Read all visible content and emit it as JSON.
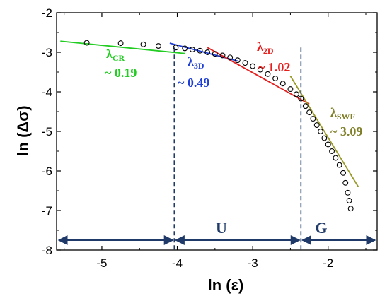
{
  "chart_data": {
    "type": "scatter",
    "xlabel": "ln (ε)",
    "ylabel": "ln (Δσ)",
    "xlim": [
      -5.6,
      -1.35
    ],
    "ylim": [
      -8,
      -2
    ],
    "xticks": [
      "-5",
      "-4",
      "-3",
      "-2"
    ],
    "xtick_values": [
      -5,
      -4,
      -3,
      -2
    ],
    "yticks": [
      "-2",
      "-3",
      "-4",
      "-5",
      "-6",
      "-7",
      "-8"
    ],
    "ytick_values": [
      -2,
      -3,
      -4,
      -5,
      -6,
      -7,
      -8
    ],
    "grid": false,
    "points": [
      [
        -5.2,
        -2.76
      ],
      [
        -4.75,
        -2.77
      ],
      [
        -4.45,
        -2.8
      ],
      [
        -4.25,
        -2.84
      ],
      [
        -4.02,
        -2.88
      ],
      [
        -3.9,
        -2.9
      ],
      [
        -3.8,
        -2.93
      ],
      [
        -3.7,
        -2.96
      ],
      [
        -3.6,
        -3.0
      ],
      [
        -3.5,
        -3.04
      ],
      [
        -3.4,
        -3.08
      ],
      [
        -3.3,
        -3.13
      ],
      [
        -3.2,
        -3.2
      ],
      [
        -3.1,
        -3.27
      ],
      [
        -3.0,
        -3.35
      ],
      [
        -2.9,
        -3.44
      ],
      [
        -2.8,
        -3.55
      ],
      [
        -2.7,
        -3.66
      ],
      [
        -2.6,
        -3.79
      ],
      [
        -2.5,
        -3.93
      ],
      [
        -2.42,
        -4.06
      ],
      [
        -2.36,
        -4.17
      ],
      [
        -2.3,
        -4.36
      ],
      [
        -2.25,
        -4.52
      ],
      [
        -2.2,
        -4.68
      ],
      [
        -2.15,
        -4.84
      ],
      [
        -2.1,
        -5.0
      ],
      [
        -2.05,
        -5.17
      ],
      [
        -2.0,
        -5.33
      ],
      [
        -1.95,
        -5.5
      ],
      [
        -1.9,
        -5.67
      ],
      [
        -1.85,
        -5.85
      ],
      [
        -1.8,
        -6.05
      ],
      [
        -1.77,
        -6.3
      ],
      [
        -1.74,
        -6.55
      ],
      [
        -1.72,
        -6.75
      ],
      [
        -1.7,
        -6.95
      ]
    ],
    "fit_lines": [
      {
        "label": "λCR",
        "sub": "CR",
        "slope_text": "~ 0.19",
        "color": "#22cc22",
        "x": [
          -5.55,
          -3.9
        ],
        "y": [
          -2.72,
          -3.03
        ]
      },
      {
        "label": "λ3D",
        "sub": "3D",
        "slope_text": "~ 0.49",
        "color": "#1f3fd6",
        "x": [
          -4.1,
          -3.2
        ],
        "y": [
          -2.77,
          -3.22
        ]
      },
      {
        "label": "λ2D",
        "sub": "2D",
        "slope_text": "~ 1.02",
        "color": "#e61e1e",
        "x": [
          -3.6,
          -2.25
        ],
        "y": [
          -2.88,
          -4.31
        ]
      },
      {
        "label": "λSWF",
        "sub": "SWF",
        "slope_text": "~ 3.09",
        "color": "#9a9a2a",
        "x": [
          -2.5,
          -1.6
        ],
        "y": [
          -3.6,
          -6.4
        ]
      }
    ],
    "annotations": {
      "cr": {
        "greek": "λ",
        "sub": "CR",
        "value": "~ 0.19",
        "color": "#22cc22"
      },
      "d3": {
        "greek": "λ",
        "sub": "3D",
        "value": "~ 0.49",
        "color": "#1f3fd6"
      },
      "d2": {
        "greek": "λ",
        "sub": "2D",
        "value": "~ 1.02",
        "color": "#e61e1e"
      },
      "swf": {
        "greek": "λ",
        "sub": "SWF",
        "value": "~ 3.09",
        "color": "#7f7f28"
      }
    },
    "vlines": [
      -4.04,
      -2.36
    ],
    "regions": [
      {
        "label": "",
        "x": [
          -5.6,
          -4.04
        ]
      },
      {
        "label": "U",
        "x": [
          -4.04,
          -2.36
        ]
      },
      {
        "label": "G",
        "x": [
          -2.36,
          -1.35
        ]
      }
    ]
  }
}
